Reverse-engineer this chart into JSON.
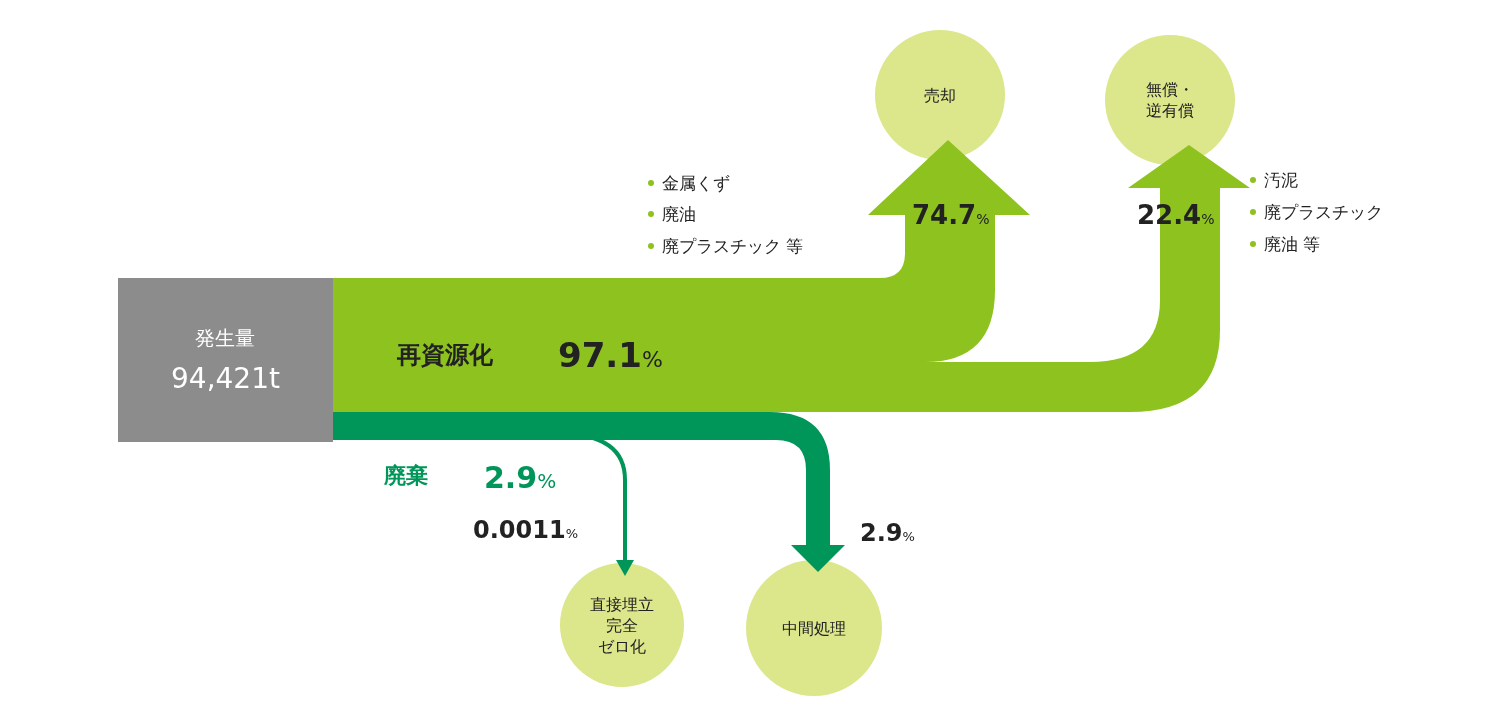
{
  "chart_data": {
    "type": "other",
    "categories": [
      "発生量",
      "再資源化",
      "売却",
      "無償・逆有償",
      "廃棄",
      "直接埋立完全ゼロ化",
      "中間処理"
    ],
    "values": [
      94421,
      97.1,
      74.7,
      22.4,
      2.9,
      0.0011,
      2.9
    ],
    "value_labels": [
      "94,421t",
      "97.1%",
      "74.7%",
      "22.4%",
      "2.9%",
      "0.0011%",
      "2.9%"
    ],
    "colors": [
      "#8c8c8c",
      "#8dc21f",
      "#dce68a",
      "#dce68a",
      "#00965a",
      "#dce68a",
      "#dce68a"
    ],
    "annotations": [
      "金属くず",
      "廃油",
      "廃プラスチック 等",
      "汚泥",
      "廃プラスチック",
      "廃油 等"
    ]
  }
}
